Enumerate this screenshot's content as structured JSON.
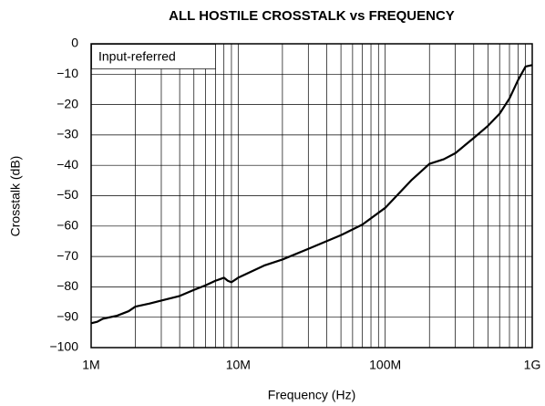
{
  "chart_data": {
    "type": "line",
    "title": "ALL HOSTILE CROSSTALK vs FREQUENCY",
    "x_label": "Frequency (Hz)",
    "y_label": "Crosstalk (dB)",
    "annotation": "Input-referred",
    "x_scale": "log",
    "grid": true,
    "color": "#000000",
    "x": [
      1000000,
      1100000,
      1200000,
      1500000,
      1800000,
      2000000,
      2500000,
      3000000,
      4000000,
      5000000,
      6000000,
      7000000,
      7500000,
      8000000,
      8500000,
      9000000,
      10000000,
      15000000,
      20000000,
      30000000,
      50000000,
      70000000,
      100000000,
      150000000,
      200000000,
      250000000,
      300000000,
      400000000,
      500000000,
      600000000,
      700000000,
      800000000,
      900000000,
      1000000000
    ],
    "values": [
      -92,
      -91.5,
      -90.5,
      -89.5,
      -88,
      -86.5,
      -85.5,
      -84.5,
      -83,
      -81,
      -79.5,
      -78,
      -77.5,
      -77,
      -78,
      -78.5,
      -77,
      -73,
      -71,
      -67.5,
      -63,
      -59.5,
      -54,
      -45,
      -39.5,
      -38,
      -36,
      -31,
      -27,
      -23,
      -18,
      -12,
      -7.5,
      -7
    ],
    "xlim": [
      1000000,
      1000000000
    ],
    "xticks": [
      {
        "value": 1000000,
        "label": "1M"
      },
      {
        "value": 10000000,
        "label": "10M"
      },
      {
        "value": 100000000,
        "label": "100M"
      },
      {
        "value": 1000000000,
        "label": "1G"
      }
    ],
    "x_minor_ticks": [
      2000000,
      3000000,
      4000000,
      5000000,
      6000000,
      7000000,
      8000000,
      9000000,
      20000000,
      30000000,
      40000000,
      50000000,
      60000000,
      70000000,
      80000000,
      90000000,
      200000000,
      300000000,
      400000000,
      500000000,
      600000000,
      700000000,
      800000000,
      900000000
    ],
    "ylim": [
      -100,
      0
    ],
    "yticks": [
      {
        "value": -100,
        "label": "−100"
      },
      {
        "value": -90,
        "label": "−90"
      },
      {
        "value": -80,
        "label": "−80"
      },
      {
        "value": -70,
        "label": "−70"
      },
      {
        "value": -60,
        "label": "−60"
      },
      {
        "value": -50,
        "label": "−50"
      },
      {
        "value": -40,
        "label": "−40"
      },
      {
        "value": -30,
        "label": "−30"
      },
      {
        "value": -20,
        "label": "−20"
      },
      {
        "value": -10,
        "label": "−10"
      },
      0
    ]
  }
}
